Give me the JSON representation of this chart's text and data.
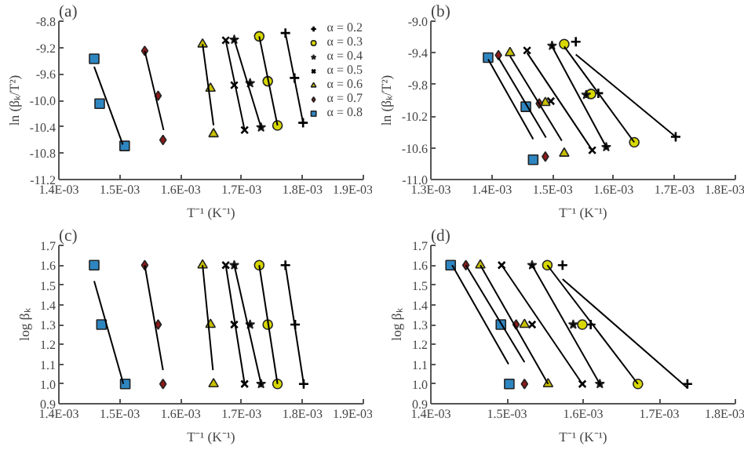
{
  "chart_data": [
    {
      "type": "scatter",
      "title": "(a)",
      "xlabel": "T⁻¹ (K⁻¹)",
      "ylabel": "ln (βₖ/T²)",
      "grid": false,
      "legend": "top right",
      "xlim": [
        0.0014,
        0.0019
      ],
      "xticks": [
        {
          "value": 0.0014,
          "label": "1.4E-03"
        },
        {
          "value": 0.0015,
          "label": "1.5E-03"
        },
        {
          "value": 0.0016,
          "label": "1.6E-03"
        },
        {
          "value": 0.0017,
          "label": "1.7E-03"
        },
        {
          "value": 0.0018,
          "label": "1.8E-03"
        },
        {
          "value": 0.0019,
          "label": "1.9E-03"
        }
      ],
      "ylim": [
        -11.2,
        -8.8
      ],
      "yticks": [
        {
          "value": -11.2,
          "label": "-11.2"
        },
        {
          "value": -10.8,
          "label": "-10.8"
        },
        {
          "value": -10.4,
          "label": "-10.4"
        },
        {
          "value": -10.0,
          "label": "-10.0"
        },
        {
          "value": -9.6,
          "label": "-9.6"
        },
        {
          "value": -9.2,
          "label": "-9.2"
        },
        {
          "value": -8.8,
          "label": "-8.8"
        }
      ],
      "series": [
        {
          "name": "α = 0.2",
          "type": "scatter",
          "marker": "cross",
          "color": "#000000",
          "x": [
            0.001772,
            0.001787,
            0.001801
          ],
          "values": [
            -8.98,
            -9.66,
            -10.34
          ]
        },
        {
          "name": "α = 0.3",
          "type": "scatter",
          "marker": "circle",
          "color": "#d8d800",
          "x": [
            0.001729,
            0.001743,
            0.001759
          ],
          "values": [
            -9.03,
            -9.71,
            -10.38
          ]
        },
        {
          "name": "α = 0.4",
          "type": "scatter",
          "marker": "star",
          "color": "#000000",
          "x": [
            0.001688,
            0.001714,
            0.001732
          ],
          "values": [
            -9.08,
            -9.74,
            -10.41
          ]
        },
        {
          "name": "α = 0.5",
          "type": "scatter",
          "marker": "x",
          "color": "#000000",
          "x": [
            0.001674,
            0.001688,
            0.001705
          ],
          "values": [
            -9.09,
            -9.77,
            -10.45
          ]
        },
        {
          "name": "α = 0.6",
          "type": "scatter",
          "marker": "triangle",
          "color": "#c8c000",
          "x": [
            0.001636,
            0.001649,
            0.001654
          ],
          "values": [
            -9.15,
            -9.82,
            -10.51
          ]
        },
        {
          "name": "α = 0.7",
          "type": "scatter",
          "marker": "diamond",
          "color": "#8b1a1a",
          "x": [
            0.001541,
            0.001563,
            0.001571
          ],
          "values": [
            -9.25,
            -9.93,
            -10.6
          ]
        },
        {
          "name": "α = 0.8",
          "type": "scatter",
          "marker": "square",
          "color": "#2e86c1",
          "x": [
            0.001458,
            0.001467,
            0.001508
          ],
          "values": [
            -9.37,
            -10.05,
            -10.69
          ]
        },
        {
          "type": "line",
          "color": "#000000",
          "x": [
            0.001772,
            0.001801
          ],
          "values": [
            -8.98,
            -10.34
          ]
        },
        {
          "type": "line",
          "color": "#000000",
          "x": [
            0.001729,
            0.001759
          ],
          "values": [
            -9.03,
            -10.38
          ]
        },
        {
          "type": "line",
          "color": "#000000",
          "x": [
            0.001688,
            0.001732
          ],
          "values": [
            -9.08,
            -10.41
          ]
        },
        {
          "type": "line",
          "color": "#000000",
          "x": [
            0.001674,
            0.001705
          ],
          "values": [
            -9.09,
            -10.45
          ]
        },
        {
          "type": "line",
          "color": "#000000",
          "x": [
            0.001636,
            0.001654
          ],
          "values": [
            -9.15,
            -10.38
          ]
        },
        {
          "type": "line",
          "color": "#000000",
          "x": [
            0.001541,
            0.001572
          ],
          "values": [
            -9.25,
            -10.45
          ]
        },
        {
          "type": "line",
          "color": "#000000",
          "x": [
            0.001458,
            0.001505
          ],
          "values": [
            -9.49,
            -10.67
          ]
        }
      ]
    },
    {
      "type": "scatter",
      "title": "(b)",
      "xlabel": "T⁻¹ (K⁻¹)",
      "ylabel": "ln (βₖ/T²)",
      "grid": false,
      "legend": false,
      "xlim": [
        0.0013,
        0.0018
      ],
      "xticks": [
        {
          "value": 0.0013,
          "label": "1.3E-03"
        },
        {
          "value": 0.0014,
          "label": "1.4E-03"
        },
        {
          "value": 0.0015,
          "label": "1.5E-03"
        },
        {
          "value": 0.0016,
          "label": "1.6E-03"
        },
        {
          "value": 0.0017,
          "label": "1.7E-03"
        },
        {
          "value": 0.0018,
          "label": "1.8E-03"
        }
      ],
      "ylim": [
        -11.0,
        -9.0
      ],
      "yticks": [
        {
          "value": -11.0,
          "label": "-11.0"
        },
        {
          "value": -10.6,
          "label": "-10.6"
        },
        {
          "value": -10.2,
          "label": "-10.2"
        },
        {
          "value": -9.8,
          "label": "-9.8"
        },
        {
          "value": -9.4,
          "label": "-9.4"
        },
        {
          "value": -9.0,
          "label": "-9.0"
        }
      ],
      "series": [
        {
          "type": "scatter",
          "marker": "cross",
          "color": "#000000",
          "x": [
            0.001538,
            0.001575,
            0.001702
          ],
          "values": [
            -9.26,
            -9.91,
            -10.46
          ]
        },
        {
          "type": "scatter",
          "marker": "circle",
          "color": "#d8d800",
          "x": [
            0.001519,
            0.001563,
            0.001634
          ],
          "values": [
            -9.29,
            -9.92,
            -10.53
          ]
        },
        {
          "type": "scatter",
          "marker": "star",
          "color": "#000000",
          "x": [
            0.001499,
            0.001555,
            0.001588
          ],
          "values": [
            -9.31,
            -9.93,
            -10.59
          ]
        },
        {
          "type": "scatter",
          "marker": "x",
          "color": "#000000",
          "x": [
            0.001458,
            0.001497,
            0.001565
          ],
          "values": [
            -9.37,
            -10.01,
            -10.63
          ]
        },
        {
          "type": "scatter",
          "marker": "triangle",
          "color": "#c8c000",
          "x": [
            0.00143,
            0.001488,
            0.001519
          ],
          "values": [
            -9.4,
            -10.03,
            -10.67
          ]
        },
        {
          "type": "scatter",
          "marker": "diamond",
          "color": "#8b1a1a",
          "x": [
            0.001411,
            0.001478,
            0.001488
          ],
          "values": [
            -9.43,
            -10.04,
            -10.71
          ]
        },
        {
          "type": "scatter",
          "marker": "square",
          "color": "#2e86c1",
          "x": [
            0.001394,
            0.001456,
            0.001468
          ],
          "values": [
            -9.46,
            -10.08,
            -10.75
          ]
        },
        {
          "type": "line",
          "color": "#000000",
          "x": [
            0.001538,
            0.001702
          ],
          "values": [
            -9.42,
            -10.46
          ]
        },
        {
          "type": "line",
          "color": "#000000",
          "x": [
            0.001519,
            0.001634
          ],
          "values": [
            -9.32,
            -10.53
          ]
        },
        {
          "type": "line",
          "color": "#000000",
          "x": [
            0.001499,
            0.001588
          ],
          "values": [
            -9.32,
            -10.59
          ]
        },
        {
          "type": "line",
          "color": "#000000",
          "x": [
            0.001458,
            0.001565
          ],
          "values": [
            -9.4,
            -10.63
          ]
        },
        {
          "type": "line",
          "color": "#000000",
          "x": [
            0.00143,
            0.001515
          ],
          "values": [
            -9.44,
            -10.51
          ]
        },
        {
          "type": "line",
          "color": "#000000",
          "x": [
            0.001411,
            0.001489
          ],
          "values": [
            -9.46,
            -10.47
          ]
        },
        {
          "type": "line",
          "color": "#000000",
          "x": [
            0.001394,
            0.001468
          ],
          "values": [
            -9.48,
            -10.49
          ]
        }
      ]
    },
    {
      "type": "scatter",
      "title": "(c)",
      "xlabel": "T⁻¹ (K⁻¹)",
      "ylabel": "log βₖ",
      "grid": false,
      "legend": false,
      "xlim": [
        0.0014,
        0.0019
      ],
      "xticks": [
        {
          "value": 0.0014,
          "label": "1.4E-03"
        },
        {
          "value": 0.0015,
          "label": "1.5E-03"
        },
        {
          "value": 0.0016,
          "label": "1.6E-03"
        },
        {
          "value": 0.0017,
          "label": "1.7E-03"
        },
        {
          "value": 0.0018,
          "label": "1.8E-03"
        },
        {
          "value": 0.0019,
          "label": "1.9E-03"
        }
      ],
      "ylim": [
        0.9,
        1.7
      ],
      "yticks": [
        {
          "value": 0.9,
          "label": "0.9"
        },
        {
          "value": 1.0,
          "label": "1.0"
        },
        {
          "value": 1.1,
          "label": "1.1"
        },
        {
          "value": 1.2,
          "label": "1.2"
        },
        {
          "value": 1.3,
          "label": "1.3"
        },
        {
          "value": 1.4,
          "label": "1.4"
        },
        {
          "value": 1.5,
          "label": "1.5"
        },
        {
          "value": 1.6,
          "label": "1.6"
        },
        {
          "value": 1.7,
          "label": "1.7"
        }
      ],
      "series": [
        {
          "type": "scatter",
          "marker": "cross",
          "color": "#000000",
          "x": [
            0.001772,
            0.001788,
            0.001802
          ],
          "values": [
            1.6,
            1.3,
            1.0
          ]
        },
        {
          "type": "scatter",
          "marker": "circle",
          "color": "#d8d800",
          "x": [
            0.001729,
            0.001743,
            0.001759
          ],
          "values": [
            1.6,
            1.3,
            1.0
          ]
        },
        {
          "type": "scatter",
          "marker": "star",
          "color": "#000000",
          "x": [
            0.001688,
            0.001714,
            0.001732
          ],
          "values": [
            1.6,
            1.3,
            1.0
          ]
        },
        {
          "type": "scatter",
          "marker": "x",
          "color": "#000000",
          "x": [
            0.001674,
            0.001688,
            0.001705
          ],
          "values": [
            1.6,
            1.3,
            1.0
          ]
        },
        {
          "type": "scatter",
          "marker": "triangle",
          "color": "#c8c000",
          "x": [
            0.001636,
            0.001649,
            0.001654
          ],
          "values": [
            1.6,
            1.3,
            1.0
          ]
        },
        {
          "type": "scatter",
          "marker": "diamond",
          "color": "#8b1a1a",
          "x": [
            0.001541,
            0.001563,
            0.001571
          ],
          "values": [
            1.6,
            1.3,
            1.0
          ]
        },
        {
          "type": "scatter",
          "marker": "square",
          "color": "#2e86c1",
          "x": [
            0.001458,
            0.00147,
            0.001509
          ],
          "values": [
            1.6,
            1.3,
            1.0
          ]
        },
        {
          "type": "line",
          "color": "#000000",
          "x": [
            0.001772,
            0.001802
          ],
          "values": [
            1.6,
            1.0
          ]
        },
        {
          "type": "line",
          "color": "#000000",
          "x": [
            0.001729,
            0.001759
          ],
          "values": [
            1.6,
            1.0
          ]
        },
        {
          "type": "line",
          "color": "#000000",
          "x": [
            0.001688,
            0.001732
          ],
          "values": [
            1.6,
            1.0
          ]
        },
        {
          "type": "line",
          "color": "#000000",
          "x": [
            0.001674,
            0.001705
          ],
          "values": [
            1.6,
            1.0
          ]
        },
        {
          "type": "line",
          "color": "#000000",
          "x": [
            0.001636,
            0.001653
          ],
          "values": [
            1.6,
            1.07
          ]
        },
        {
          "type": "line",
          "color": "#000000",
          "x": [
            0.001541,
            0.001571
          ],
          "values": [
            1.6,
            1.07
          ]
        },
        {
          "type": "line",
          "color": "#000000",
          "x": [
            0.001458,
            0.001506
          ],
          "values": [
            1.52,
            1.0
          ]
        }
      ]
    },
    {
      "type": "scatter",
      "title": "(d)",
      "xlabel": "T⁻¹ (K⁻¹)",
      "ylabel": "log βₖ",
      "grid": false,
      "legend": false,
      "xlim": [
        0.0014,
        0.0018
      ],
      "xticks": [
        {
          "value": 0.0014,
          "label": "1.4E-03"
        },
        {
          "value": 0.0015,
          "label": "1.5E-03"
        },
        {
          "value": 0.0016,
          "label": "1.6E-03"
        },
        {
          "value": 0.0017,
          "label": "1.7E-03"
        },
        {
          "value": 0.0018,
          "label": "1.8E-03"
        }
      ],
      "ylim": [
        0.9,
        1.7
      ],
      "yticks": [
        {
          "value": 0.9,
          "label": "0.9"
        },
        {
          "value": 1.0,
          "label": "1.0"
        },
        {
          "value": 1.1,
          "label": "1.1"
        },
        {
          "value": 1.2,
          "label": "1.2"
        },
        {
          "value": 1.3,
          "label": "1.3"
        },
        {
          "value": 1.4,
          "label": "1.4"
        },
        {
          "value": 1.5,
          "label": "1.5"
        },
        {
          "value": 1.6,
          "label": "1.6"
        },
        {
          "value": 1.7,
          "label": "1.7"
        }
      ],
      "series": [
        {
          "type": "scatter",
          "marker": "cross",
          "color": "#000000",
          "x": [
            0.001573,
            0.00161,
            0.001737
          ],
          "values": [
            1.6,
            1.3,
            1.0
          ]
        },
        {
          "type": "scatter",
          "marker": "circle",
          "color": "#d8d800",
          "x": [
            0.001553,
            0.001599,
            0.001672
          ],
          "values": [
            1.6,
            1.3,
            1.0
          ]
        },
        {
          "type": "scatter",
          "marker": "star",
          "color": "#000000",
          "x": [
            0.001533,
            0.001587,
            0.001622
          ],
          "values": [
            1.6,
            1.3,
            1.0
          ]
        },
        {
          "type": "scatter",
          "marker": "x",
          "color": "#000000",
          "x": [
            0.001493,
            0.001533,
            0.001599
          ],
          "values": [
            1.6,
            1.3,
            1.0
          ]
        },
        {
          "type": "scatter",
          "marker": "triangle",
          "color": "#c8c000",
          "x": [
            0.001465,
            0.001523,
            0.001554
          ],
          "values": [
            1.6,
            1.3,
            1.0
          ]
        },
        {
          "type": "scatter",
          "marker": "diamond",
          "color": "#8b1a1a",
          "x": [
            0.001446,
            0.001512,
            0.001523
          ],
          "values": [
            1.6,
            1.3,
            1.0
          ]
        },
        {
          "type": "scatter",
          "marker": "square",
          "color": "#2e86c1",
          "x": [
            0.001426,
            0.001492,
            0.001503
          ],
          "values": [
            1.6,
            1.3,
            1.0
          ]
        },
        {
          "type": "line",
          "color": "#000000",
          "x": [
            0.001573,
            0.001737
          ],
          "values": [
            1.53,
            0.98
          ]
        },
        {
          "type": "line",
          "color": "#000000",
          "x": [
            0.001553,
            0.001672
          ],
          "values": [
            1.6,
            1.0
          ]
        },
        {
          "type": "line",
          "color": "#000000",
          "x": [
            0.001533,
            0.001622
          ],
          "values": [
            1.6,
            1.0
          ]
        },
        {
          "type": "line",
          "color": "#000000",
          "x": [
            0.001493,
            0.001599
          ],
          "values": [
            1.6,
            1.0
          ]
        },
        {
          "type": "line",
          "color": "#000000",
          "x": [
            0.001465,
            0.001554
          ],
          "values": [
            1.6,
            1.0
          ]
        },
        {
          "type": "line",
          "color": "#000000",
          "x": [
            0.001446,
            0.001523
          ],
          "values": [
            1.6,
            1.11
          ]
        },
        {
          "type": "line",
          "color": "#000000",
          "x": [
            0.001428,
            0.001502
          ],
          "values": [
            1.6,
            1.1
          ]
        }
      ]
    }
  ]
}
